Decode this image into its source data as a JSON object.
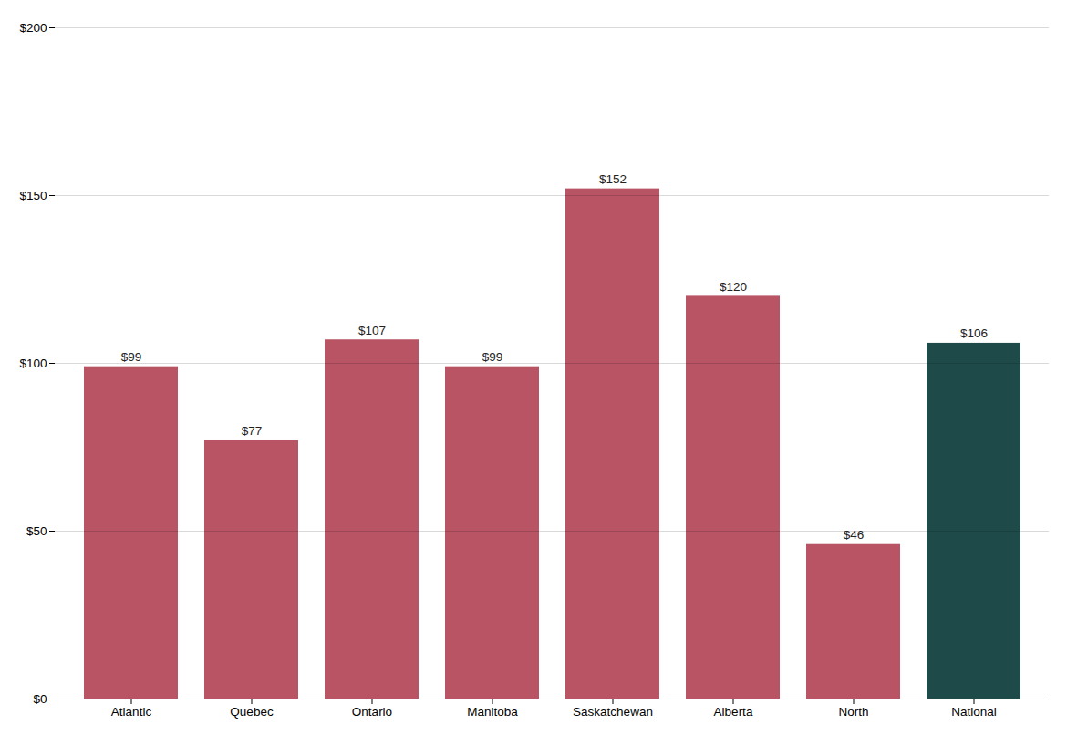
{
  "chart_data": {
    "type": "bar",
    "categories": [
      "Atlantic",
      "Quebec",
      "Ontario",
      "Manitoba",
      "Saskatchewan",
      "Alberta",
      "North",
      "National"
    ],
    "values": [
      99,
      77,
      107,
      99,
      152,
      120,
      46,
      106
    ],
    "value_labels": [
      "$99",
      "$77",
      "$107",
      "$99",
      "$152",
      "$120",
      "$46",
      "$106"
    ],
    "colors": [
      "#b85464",
      "#b85464",
      "#b85464",
      "#b85464",
      "#b85464",
      "#b85464",
      "#b85464",
      "#1e4a4a"
    ],
    "ylim": [
      0,
      200
    ],
    "yticks": [
      {
        "value": 0,
        "label": "$0"
      },
      {
        "value": 50,
        "label": "$50"
      },
      {
        "value": 100,
        "label": "$100"
      },
      {
        "value": 150,
        "label": "$150"
      },
      {
        "value": 200,
        "label": "$200"
      }
    ],
    "grid": true,
    "data_labels": true
  }
}
